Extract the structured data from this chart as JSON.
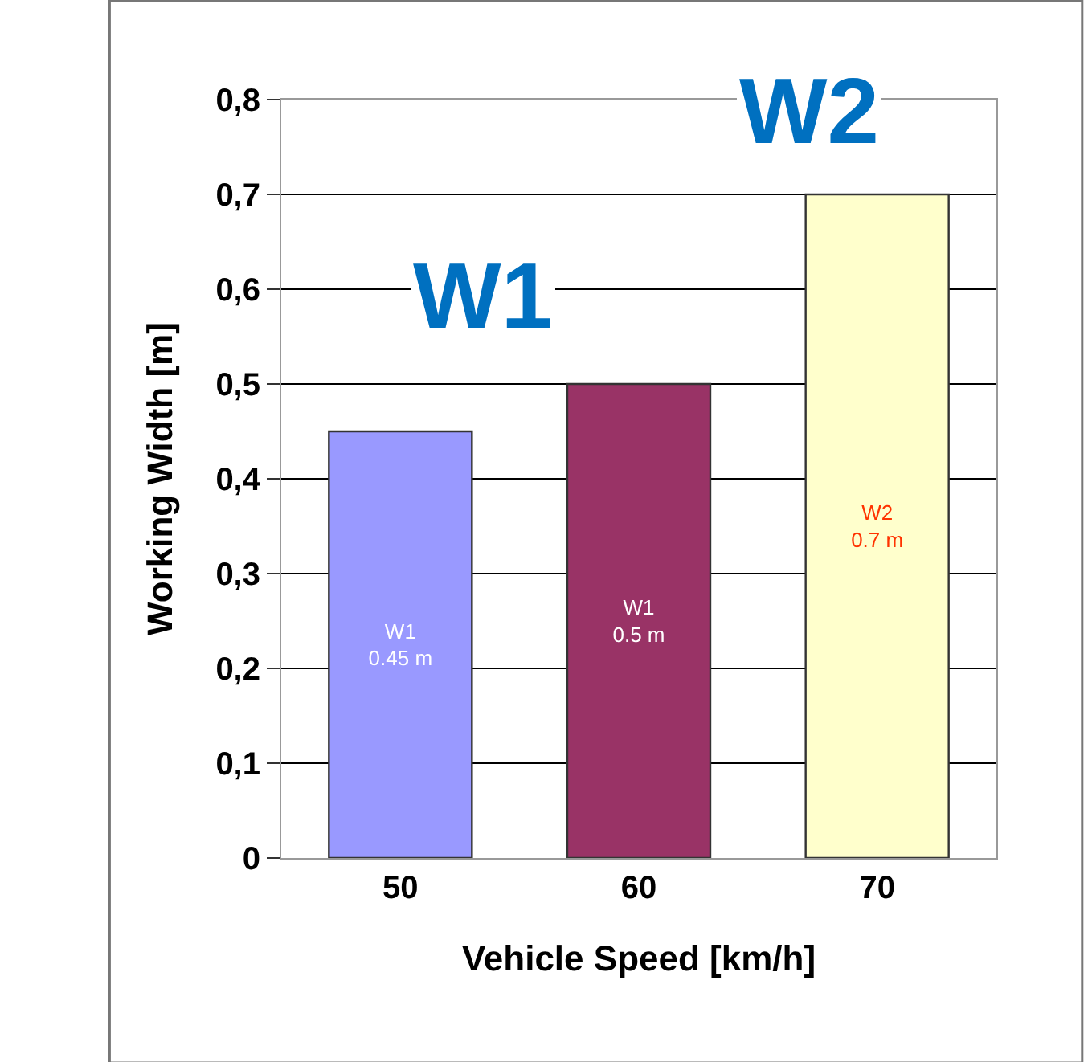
{
  "chart_data": {
    "type": "bar",
    "xlabel": "Vehicle Speed [km/h]",
    "ylabel": "Working Width [m]",
    "categories": [
      "50",
      "60",
      "70"
    ],
    "values": [
      0.45,
      0.5,
      0.7
    ],
    "colors": [
      "#9999ff",
      "#993366",
      "#ffffcc"
    ],
    "value_labels": [
      "W1\n0.45 m",
      "W1\n0.5 m",
      "W2\n0.7 m"
    ],
    "ylim": [
      0,
      0.8
    ],
    "yticks": [
      0,
      {
        "value": 0.1,
        "label": "0,1"
      },
      {
        "value": 0.2,
        "label": "0,2"
      },
      {
        "value": 0.3,
        "label": "0,3"
      },
      {
        "value": 0.4,
        "label": "0,4"
      },
      {
        "value": 0.5,
        "label": "0,5"
      },
      {
        "value": 0.6,
        "label": "0,6"
      },
      {
        "value": 0.7,
        "label": "0,7"
      },
      {
        "value": 0.8,
        "label": "0,8"
      }
    ],
    "grid": "y",
    "annotations": [
      "W1",
      "W2"
    ]
  }
}
